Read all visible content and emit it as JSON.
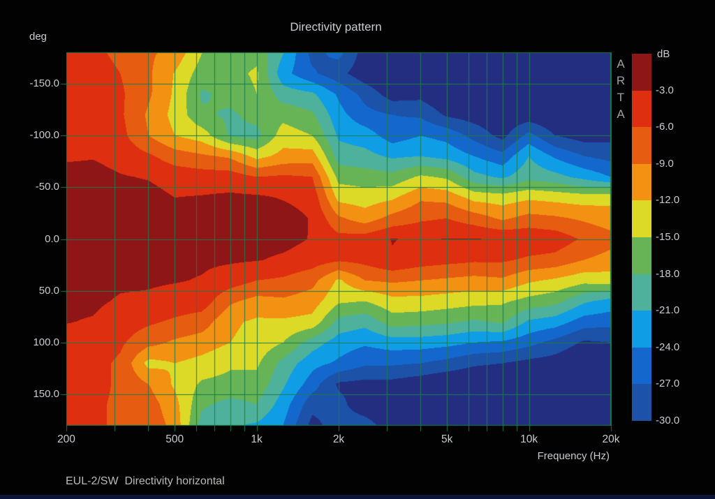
{
  "header": {
    "title": "Directivity pattern",
    "y_axis_unit": "deg"
  },
  "footer": {
    "text": "EUL-2/SW  Directivity horizontal"
  },
  "x_axis": {
    "label": "Frequency (Hz)",
    "ticks": [
      {
        "value": 200,
        "label": "200"
      },
      {
        "value": 500,
        "label": "500"
      },
      {
        "value": 1000,
        "label": "1k"
      },
      {
        "value": 2000,
        "label": "2k"
      },
      {
        "value": 5000,
        "label": "5k"
      },
      {
        "value": 10000,
        "label": "10k"
      },
      {
        "value": 20000,
        "label": "20k"
      }
    ],
    "gridlines": [
      200,
      300,
      400,
      500,
      600,
      700,
      800,
      900,
      1000,
      2000,
      3000,
      4000,
      5000,
      6000,
      7000,
      8000,
      9000,
      10000,
      20000
    ]
  },
  "y_axis": {
    "unit": "deg",
    "ticks": [
      {
        "value": -150,
        "label": "-150.0"
      },
      {
        "value": -100,
        "label": "-100.0"
      },
      {
        "value": -50,
        "label": "-50.0"
      },
      {
        "value": 0,
        "label": "0.0"
      },
      {
        "value": 50,
        "label": "50.0"
      },
      {
        "value": 100,
        "label": "100.0"
      },
      {
        "value": 150,
        "label": "150.0"
      }
    ],
    "gridlines": [
      -150,
      -100,
      -50,
      0,
      50,
      100,
      150
    ]
  },
  "colorbar": {
    "unit": "dB",
    "brand": "ARTA",
    "labels": [
      "-3.0",
      "-6.0",
      "-9.0",
      "-12.0",
      "-15.0",
      "-18.0",
      "-21.0",
      "-24.0",
      "-27.0",
      "-30.0"
    ]
  },
  "colors": {
    "background": "#020202",
    "grid": "#1b7b48",
    "text": "#c8cbce",
    "bottom_strip": "#0c1535"
  },
  "chart_data": {
    "type": "heatmap",
    "title": "Directivity pattern",
    "xlabel": "Frequency (Hz)",
    "ylabel": "deg",
    "z_unit": "dB",
    "x_scale": "log",
    "xlim": [
      200,
      20000
    ],
    "ylim": [
      -180,
      180
    ],
    "zlim": [
      0,
      -30
    ],
    "band_step_db": 3,
    "palette": [
      "#8e1617",
      "#df2f11",
      "#e65c10",
      "#f29112",
      "#dcd927",
      "#66b455",
      "#4db19c",
      "#0f9ee6",
      "#1468cd",
      "#1c52a8",
      "#232e80"
    ],
    "x": [
      200,
      250,
      315,
      400,
      500,
      630,
      800,
      1000,
      1250,
      1600,
      2000,
      2500,
      3150,
      4000,
      5000,
      6300,
      8000,
      10000,
      12500,
      16000,
      20000
    ],
    "y": [
      -180,
      -160,
      -140,
      -120,
      -100,
      -80,
      -60,
      -40,
      -20,
      0,
      20,
      40,
      60,
      80,
      100,
      120,
      140,
      160,
      180
    ],
    "values": [
      [
        -5.0,
        -5.5,
        -6.5,
        -8.5,
        -10.0,
        -15.0,
        -16.5,
        -16.0,
        -20.8,
        -28.0,
        -26.0,
        -31.5,
        -30.5,
        -33,
        -33,
        -33,
        -33,
        -33,
        -33,
        -33,
        -33
      ],
      [
        -4.5,
        -5.0,
        -6.0,
        -8.5,
        -12.2,
        -16.5,
        -16.0,
        -14.5,
        -23.0,
        -26.5,
        -29.0,
        -32.0,
        -33,
        -33,
        -33,
        -33,
        -33,
        -33,
        -33,
        -33,
        -33
      ],
      [
        -4.5,
        -5.0,
        -5.5,
        -8.5,
        -12.5,
        -18.5,
        -17.0,
        -15.0,
        -19.5,
        -20.5,
        -24.5,
        -28.0,
        -31.5,
        -31.0,
        -33,
        -33,
        -33,
        -33,
        -33,
        -33,
        -33
      ],
      [
        -4.5,
        -5.0,
        -5.5,
        -9.5,
        -13.0,
        -17.5,
        -18.5,
        -17.0,
        -16.0,
        -17.5,
        -23.0,
        -26.0,
        -27.0,
        -27.5,
        -30.5,
        -31.5,
        -32.5,
        -32.0,
        -33,
        -33,
        -33
      ],
      [
        -4.0,
        -4.5,
        -5.0,
        -9.0,
        -12.0,
        -13.5,
        -18.5,
        -19.0,
        -13.5,
        -15.0,
        -21.5,
        -22.5,
        -25.5,
        -24.0,
        -25.0,
        -28.0,
        -31.0,
        -26.0,
        -30.0,
        -31.5,
        -31.0
      ],
      [
        -3.4,
        -3.2,
        -4.0,
        -5.5,
        -7.5,
        -8.5,
        -9.5,
        -13.0,
        -11.0,
        -10.5,
        -19.5,
        -20.0,
        -21.5,
        -21.0,
        -22.0,
        -24.0,
        -26.0,
        -21.0,
        -24.5,
        -27.0,
        -28.0
      ],
      [
        -2.0,
        -2.0,
        -2.8,
        -3.2,
        -4.2,
        -4.5,
        -4.5,
        -6.0,
        -5.5,
        -6.0,
        -16.0,
        -16.5,
        -17.0,
        -14.5,
        -15.5,
        -20.0,
        -21.5,
        -19.0,
        -20.0,
        -22.0,
        -24.0
      ],
      [
        -1.5,
        -1.5,
        -2.0,
        -2.0,
        -3.0,
        -2.8,
        -2.5,
        -2.5,
        -3.2,
        -4.0,
        -13.0,
        -13.5,
        -12.5,
        -9.5,
        -10.0,
        -13.0,
        -13.5,
        -12.5,
        -13.0,
        -13.5,
        -13.0
      ],
      [
        -1.0,
        -1.0,
        -1.5,
        -1.5,
        -1.5,
        -1.8,
        -1.8,
        -1.8,
        -1.8,
        -3.2,
        -8.5,
        -10.5,
        -8.0,
        -6.5,
        -6.0,
        -7.5,
        -9.5,
        -8.0,
        -8.5,
        -9.5,
        -10.5
      ],
      [
        -1.0,
        -1.0,
        -1.5,
        -1.5,
        -1.5,
        -1.8,
        -1.8,
        -1.8,
        -2.0,
        -3.2,
        -5.0,
        -4.5,
        -2.9,
        -3.4,
        -2.9,
        -2.9,
        -3.3,
        -3.6,
        -4.2,
        -6.5,
        -8.0
      ],
      [
        -1.5,
        -1.5,
        -2.0,
        -2.0,
        -2.2,
        -2.5,
        -2.6,
        -2.8,
        -3.5,
        -4.5,
        -5.5,
        -5.0,
        -3.2,
        -4.5,
        -5.0,
        -5.5,
        -5.5,
        -6.5,
        -7.0,
        -9.0,
        -10.0
      ],
      [
        -2.0,
        -2.0,
        -2.5,
        -2.6,
        -2.8,
        -3.2,
        -4.5,
        -6.0,
        -6.5,
        -8.0,
        -12.5,
        -9.0,
        -8.5,
        -9.0,
        -9.5,
        -10.0,
        -9.5,
        -11.5,
        -12.5,
        -14.0,
        -13.5
      ],
      [
        -2.5,
        -2.5,
        -3.3,
        -3.5,
        -4.2,
        -4.5,
        -8.5,
        -10.0,
        -9.5,
        -10.5,
        -14.5,
        -15.0,
        -13.0,
        -13.0,
        -13.5,
        -14.0,
        -14.5,
        -16.0,
        -17.0,
        -20.5,
        -22.0
      ],
      [
        -2.9,
        -3.2,
        -4.5,
        -5.5,
        -6.5,
        -7.5,
        -11.5,
        -12.5,
        -12.5,
        -13.0,
        -19.0,
        -20.0,
        -16.5,
        -17.0,
        -17.5,
        -18.5,
        -17.5,
        -21.5,
        -22.5,
        -25.5,
        -26.0
      ],
      [
        -4.0,
        -4.5,
        -5.5,
        -8.0,
        -9.5,
        -10.5,
        -12.0,
        -13.0,
        -15.0,
        -19.5,
        -22.5,
        -23.5,
        -22.5,
        -22.5,
        -23.0,
        -24.0,
        -24.5,
        -26.0,
        -28.0,
        -30.5,
        -30.0
      ],
      [
        -4.5,
        -5.0,
        -6.5,
        -13.0,
        -12.0,
        -13.0,
        -14.5,
        -14.5,
        -19.0,
        -23.0,
        -24.5,
        -26.5,
        -26.5,
        -27.0,
        -28.0,
        -29.5,
        -30.0,
        -31.0,
        -31.5,
        -33.0,
        -33.0
      ],
      [
        -4.5,
        -5.0,
        -6.5,
        -9.0,
        -12.5,
        -15.5,
        -16.0,
        -16.0,
        -20.5,
        -25.5,
        -30.5,
        -31.0,
        -31.0,
        -32.0,
        -33,
        -33,
        -33,
        -33,
        -33,
        -33,
        -33
      ],
      [
        -5.0,
        -5.5,
        -6.5,
        -7.5,
        -11.0,
        -17.5,
        -19.0,
        -18.0,
        -22.5,
        -29.0,
        -29.0,
        -32.0,
        -33,
        -33,
        -33,
        -33,
        -33,
        -33,
        -33,
        -33,
        -33
      ],
      [
        -5.0,
        -5.5,
        -6.5,
        -7.0,
        -10.0,
        -19.5,
        -20.5,
        -21.5,
        -24.0,
        -31.0,
        -28.5,
        -28.5,
        -32.0,
        -33,
        -33,
        -33,
        -33,
        -33,
        -33,
        -33,
        -33
      ]
    ]
  }
}
